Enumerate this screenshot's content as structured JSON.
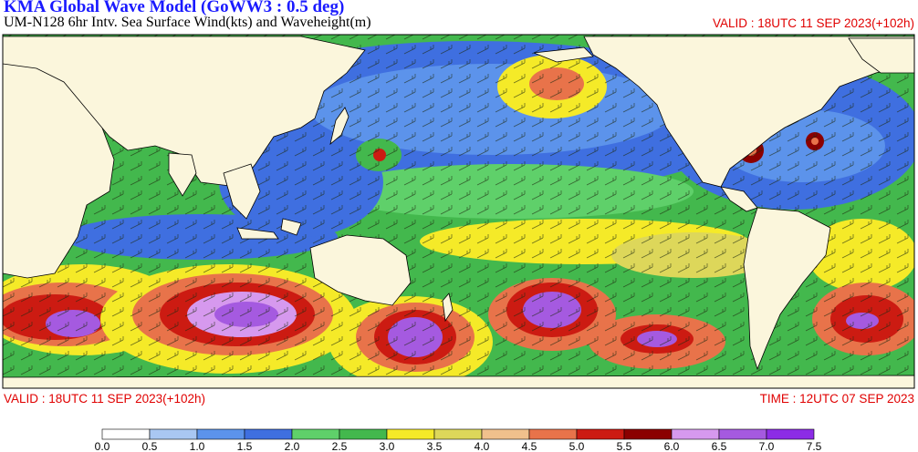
{
  "header": {
    "title": "KMA  Global Wave Model (GoWW3 : 0.5 deg)",
    "subtitle": "UM-N128  6hr Intv. Sea Surface Wind(kts) and Waveheight(m)",
    "valid_top": "VALID : 18UTC 11 SEP 2023(+102h)"
  },
  "footer": {
    "valid": "VALID : 18UTC 11 SEP 2023(+102h)",
    "time": "TIME : 12UTC 07 SEP 2023"
  },
  "colors": {
    "land": "#fbf6dc",
    "coast": "#000000",
    "scale": [
      "#ffffff",
      "#a9c7f2",
      "#5c93eb",
      "#3f6fe0",
      "#5fd06a",
      "#43b84d",
      "#f5ea28",
      "#ddd75a",
      "#f0c08c",
      "#e8734a",
      "#cc1b12",
      "#8b0000",
      "#d699ee",
      "#a55ae0",
      "#8c2ce6"
    ]
  },
  "legend": {
    "ticks": [
      "0.0",
      "0.5",
      "1.0",
      "1.5",
      "2.0",
      "2.5",
      "3.0",
      "3.5",
      "4.0",
      "4.5",
      "5.0",
      "5.5",
      "6.0",
      "6.5",
      "7.0",
      "7.5"
    ]
  }
}
